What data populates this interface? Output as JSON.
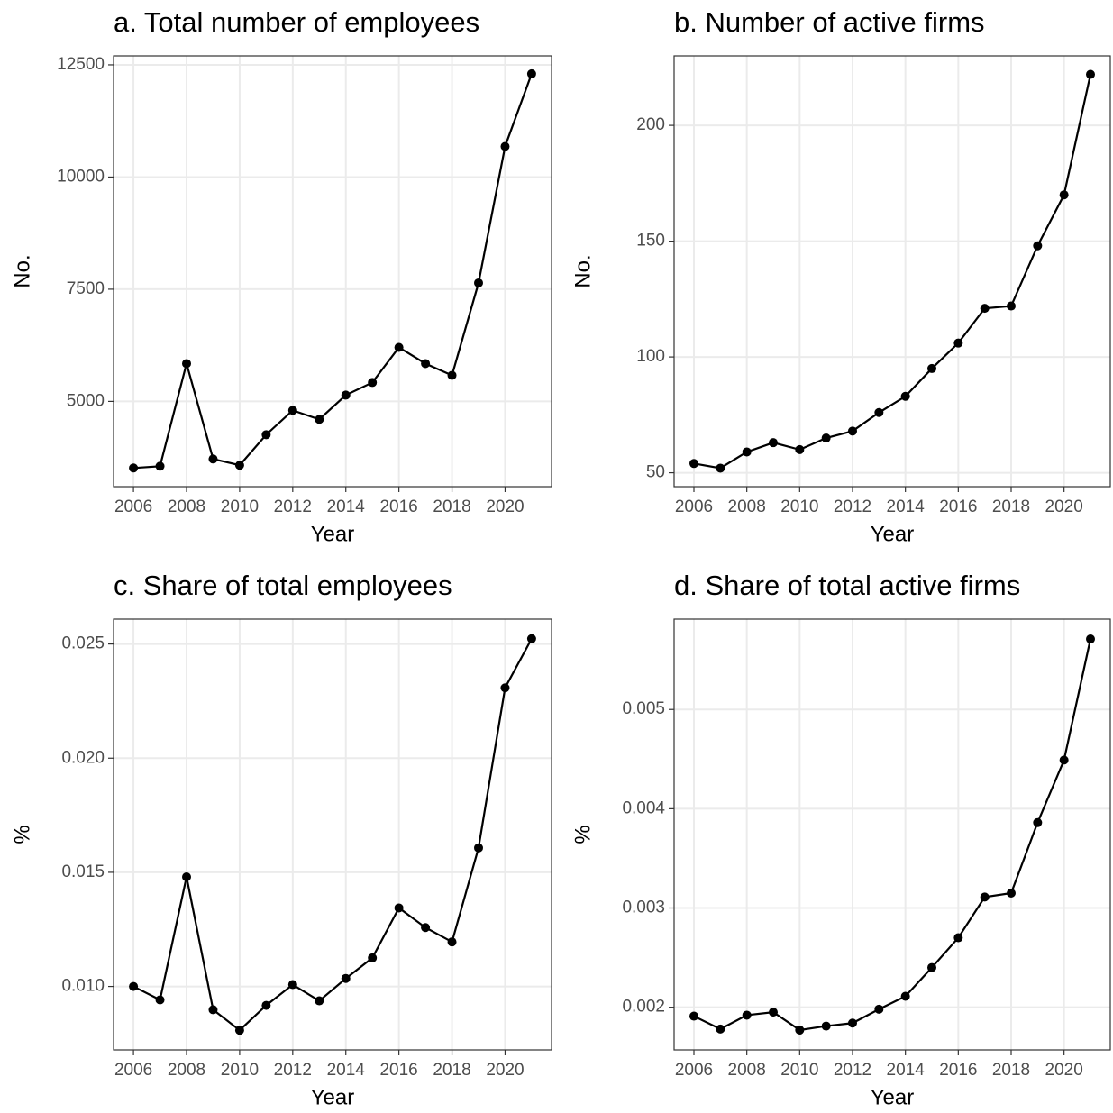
{
  "chart_data": [
    {
      "type": "line",
      "title": "a. Total number of employees",
      "xlabel": "Year",
      "ylabel": "No.",
      "x": [
        2006,
        2007,
        2008,
        2009,
        2010,
        2011,
        2012,
        2013,
        2014,
        2015,
        2016,
        2017,
        2018,
        2019,
        2020,
        2021
      ],
      "values": [
        3516,
        3556,
        5842,
        3717,
        3577,
        4258,
        4800,
        4599,
        5140,
        5421,
        6203,
        5842,
        5581,
        7640,
        10682,
        12300
      ],
      "color": "#000000",
      "grid": true,
      "xlim": [
        2005.25,
        2021.75
      ],
      "xticks": [
        2006,
        2008,
        2010,
        2012,
        2014,
        2016,
        2018,
        2020
      ],
      "ylim": [
        3100,
        12700
      ],
      "yticks": [
        5000,
        7500,
        10000,
        12500
      ]
    },
    {
      "type": "line",
      "title": "b. Number of active firms",
      "xlabel": "Year",
      "ylabel": "No.",
      "x": [
        2006,
        2007,
        2008,
        2009,
        2010,
        2011,
        2012,
        2013,
        2014,
        2015,
        2016,
        2017,
        2018,
        2019,
        2020,
        2021
      ],
      "values": [
        54,
        52,
        59,
        63,
        60,
        65,
        68,
        76,
        83,
        95,
        106,
        121,
        122,
        148,
        170,
        222
      ],
      "color": "#000000",
      "grid": true,
      "xlim": [
        2005.25,
        2021.75
      ],
      "xticks": [
        2006,
        2008,
        2010,
        2012,
        2014,
        2016,
        2018,
        2020
      ],
      "ylim": [
        44,
        230
      ],
      "yticks": [
        50,
        100,
        150,
        200
      ]
    },
    {
      "type": "line",
      "title": "c. Share of total employees",
      "xlabel": "Year",
      "ylabel": "%",
      "x": [
        2006,
        2007,
        2008,
        2009,
        2010,
        2011,
        2012,
        2013,
        2014,
        2015,
        2016,
        2017,
        2018,
        2019,
        2020,
        2021
      ],
      "values": [
        0.01,
        0.00941,
        0.0148,
        0.00898,
        0.00808,
        0.00917,
        0.01008,
        0.00937,
        0.01035,
        0.01125,
        0.01344,
        0.01258,
        0.01195,
        0.01607,
        0.02308,
        0.02523
      ],
      "color": "#000000",
      "grid": true,
      "xlim": [
        2005.25,
        2021.75
      ],
      "xticks": [
        2006,
        2008,
        2010,
        2012,
        2014,
        2016,
        2018,
        2020
      ],
      "ylim": [
        0.00722,
        0.02609
      ],
      "yticks": [
        {
          "value": 0.01,
          "label": "0.010"
        },
        0.015,
        {
          "value": 0.02,
          "label": "0.020"
        },
        0.025
      ]
    },
    {
      "type": "line",
      "title": "d. Share of total active firms",
      "xlabel": "Year",
      "ylabel": "%",
      "x": [
        2006,
        2007,
        2008,
        2009,
        2010,
        2011,
        2012,
        2013,
        2014,
        2015,
        2016,
        2017,
        2018,
        2019,
        2020,
        2021
      ],
      "values": [
        0.00191,
        0.00178,
        0.00192,
        0.00195,
        0.00177,
        0.00181,
        0.00184,
        0.00198,
        0.00211,
        0.0024,
        0.0027,
        0.00311,
        0.00315,
        0.00386,
        0.00449,
        0.00571
      ],
      "color": "#000000",
      "grid": true,
      "xlim": [
        2005.25,
        2021.75
      ],
      "xticks": [
        2006,
        2008,
        2010,
        2012,
        2014,
        2016,
        2018,
        2020
      ],
      "ylim": [
        0.00157,
        0.00591
      ],
      "yticks": [
        0.002,
        0.003,
        0.004,
        0.005
      ]
    }
  ]
}
